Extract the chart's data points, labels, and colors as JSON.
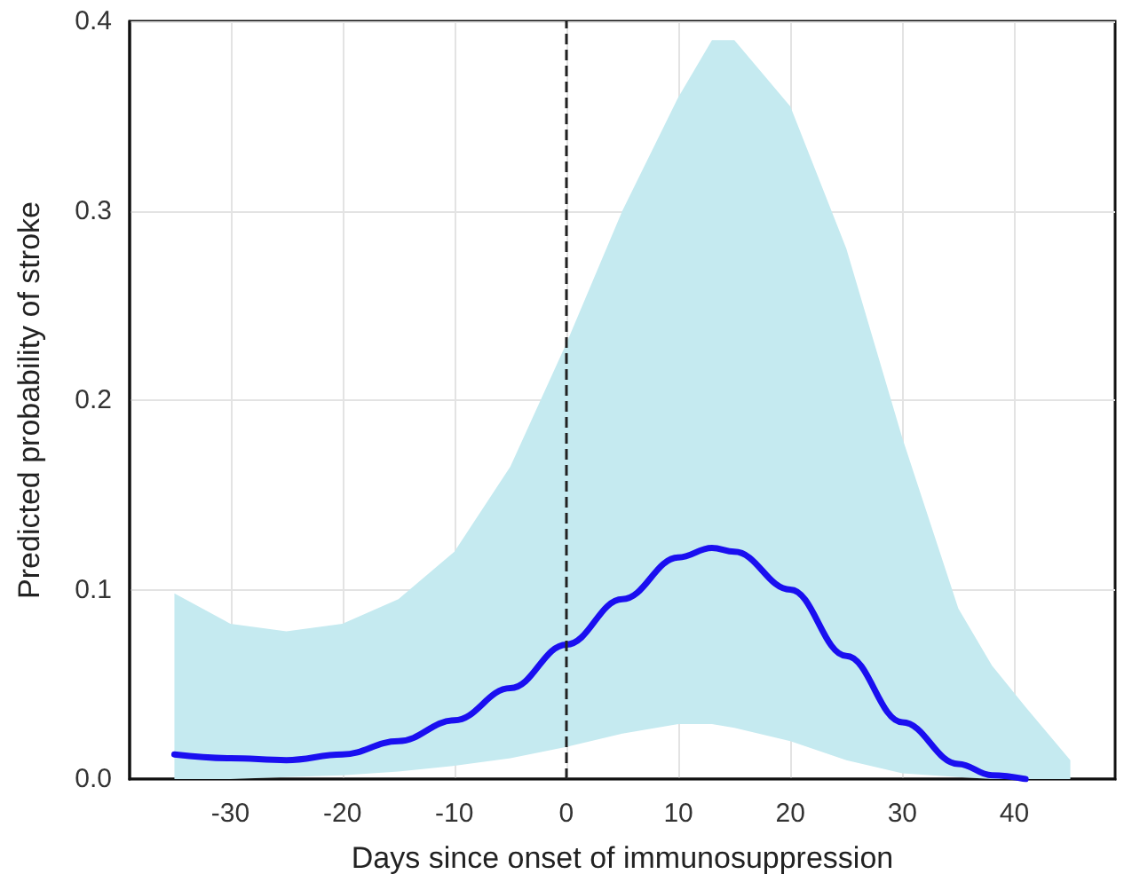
{
  "chart_data": {
    "type": "line",
    "xlabel": "Days since onset of immunosuppression",
    "ylabel": "Predicted probability of stroke",
    "x": [
      -35,
      -30,
      -25,
      -20,
      -15,
      -10,
      -5,
      0,
      5,
      10,
      13,
      15,
      20,
      25,
      30,
      35,
      38,
      41,
      45
    ],
    "series": [
      {
        "color": "#1a0ff0",
        "values": [
          0.013,
          0.011,
          0.01,
          0.013,
          0.02,
          0.031,
          0.048,
          0.071,
          0.095,
          0.117,
          0.122,
          0.12,
          0.1,
          0.065,
          0.03,
          0.008,
          0.002,
          0.0,
          null
        ],
        "lower": [
          0.0,
          0.0,
          0.001,
          0.002,
          0.004,
          0.007,
          0.011,
          0.017,
          0.024,
          0.029,
          0.029,
          0.027,
          0.02,
          0.01,
          0.003,
          0.001,
          0.0,
          0.0,
          0.0
        ],
        "upper": [
          0.098,
          0.082,
          0.078,
          0.082,
          0.095,
          0.12,
          0.165,
          0.23,
          0.3,
          0.36,
          0.39,
          0.39,
          0.355,
          0.28,
          0.18,
          0.09,
          0.06,
          0.038,
          0.01
        ]
      }
    ],
    "xlim": [
      -39,
      49
    ],
    "xticks": [
      -30,
      -20,
      -10,
      0,
      10,
      20,
      30,
      40
    ],
    "ylim": [
      0,
      0.4
    ],
    "yticks": [
      {
        "value": 0,
        "label": "0.0"
      },
      0.1,
      0.2,
      0.3,
      0.4
    ],
    "ref_lines": [
      {
        "axis": "x",
        "value": 0,
        "color": "#222222",
        "line_style": "dashed"
      }
    ],
    "grid": true,
    "marker": "none",
    "line_style": "solid"
  }
}
